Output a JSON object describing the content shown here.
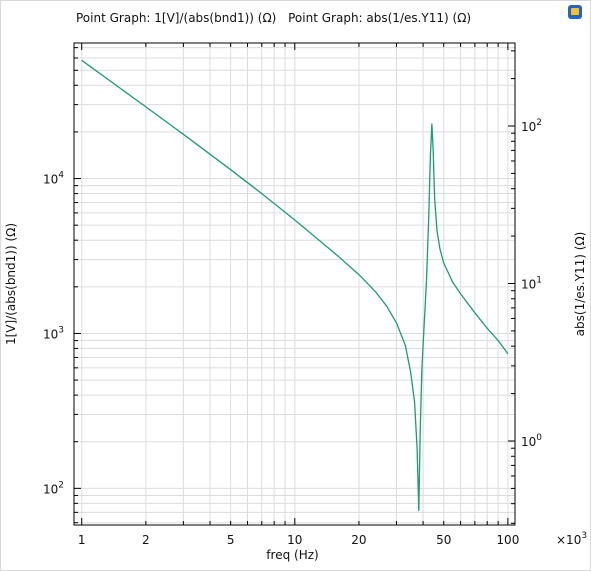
{
  "titles": {
    "series1": "Point Graph: 1[V]/(abs(bnd1)) (Ω)",
    "series2": "Point Graph: abs(1/es.Y11) (Ω)"
  },
  "colors": {
    "line": "#1f9a74",
    "frame": "#000000",
    "grid": "#dcdcdc",
    "logo_blue": "#2463c8",
    "logo_yellow": "#f2c230"
  },
  "icon": "comsol-logo-icon",
  "chart_data": {
    "type": "line",
    "xlabel": "freq (Hz)",
    "x_multiplier": "×10^3",
    "x_scale": "log",
    "xlim": [
      0.92,
      108
    ],
    "x_ticks": [
      {
        "value": 1,
        "label": "1"
      },
      {
        "value": 2,
        "label": "2"
      },
      {
        "value": 5,
        "label": "5"
      },
      {
        "value": 10,
        "label": "10"
      },
      {
        "value": 20,
        "label": "20"
      },
      {
        "value": 50,
        "label": "50"
      },
      {
        "value": 100,
        "label": "100"
      }
    ],
    "left_axis": {
      "label": "1[V]/(abs(bnd1)) (Ω)",
      "scale": "log",
      "ylim": [
        58,
        75000
      ],
      "ticks": [
        {
          "value": 100,
          "base": "10",
          "exp": "2"
        },
        {
          "value": 1000,
          "base": "10",
          "exp": "3"
        },
        {
          "value": 10000,
          "base": "10",
          "exp": "4"
        }
      ]
    },
    "right_axis": {
      "label": "abs(1/es.Y11) (Ω)",
      "scale": "log",
      "ticks": [
        {
          "value": 1,
          "base": "10",
          "exp": "0"
        },
        {
          "value": 10,
          "base": "10",
          "exp": "1"
        },
        {
          "value": 100,
          "base": "10",
          "exp": "2"
        }
      ]
    },
    "grid": true,
    "series": [
      {
        "x": [
          1,
          1.5,
          2,
          3,
          5,
          7,
          10,
          13,
          16,
          20,
          24,
          27,
          30,
          33,
          35,
          36.5,
          37.5,
          38.2,
          38.8,
          39.5,
          40.5,
          41.5,
          42.5,
          43.3,
          44,
          44.6,
          45.3,
          46.5,
          48,
          50,
          55,
          60,
          70,
          80,
          90,
          100
        ],
        "y": [
          58000,
          38700,
          29000,
          19300,
          11400,
          8000,
          5400,
          4000,
          3150,
          2400,
          1850,
          1500,
          1170,
          840,
          560,
          360,
          180,
          72,
          250,
          590,
          1150,
          2200,
          5500,
          14000,
          22500,
          15000,
          7500,
          4600,
          3500,
          2850,
          2150,
          1800,
          1360,
          1080,
          900,
          740
        ]
      }
    ]
  }
}
